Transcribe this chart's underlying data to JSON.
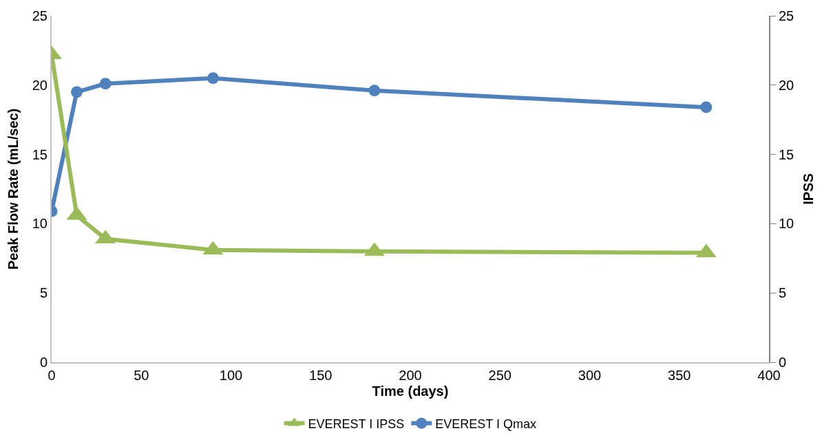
{
  "chart_data": {
    "type": "line",
    "xlabel": "Time (days)",
    "ylabel": "Peak Flow Rate (mL/sec)",
    "y2label": "IPSS",
    "x": [
      0,
      14,
      30,
      90,
      180,
      365
    ],
    "series": [
      {
        "name": "EVEREST I IPSS",
        "color": "#9bbb59",
        "values": [
          22.2,
          10.6,
          8.9,
          8.1,
          8.0,
          7.9
        ],
        "axis": "y2",
        "marker": "triangle"
      },
      {
        "name": "EVEREST I Qmax",
        "color": "#4f81bd",
        "values": [
          10.9,
          19.5,
          20.1,
          20.5,
          19.6,
          18.4
        ],
        "marker": "circle"
      }
    ],
    "xlim": [
      0,
      400
    ],
    "xticks": [
      0,
      50,
      100,
      150,
      200,
      250,
      300,
      350,
      400
    ],
    "ylim": [
      0,
      25
    ],
    "yticks": [
      0,
      5,
      10,
      15,
      20,
      25
    ],
    "y2lim": [
      0,
      25
    ],
    "y2ticks": [
      0,
      5,
      10,
      15,
      20,
      25
    ],
    "legend": "bottom",
    "line_style": "solid"
  }
}
